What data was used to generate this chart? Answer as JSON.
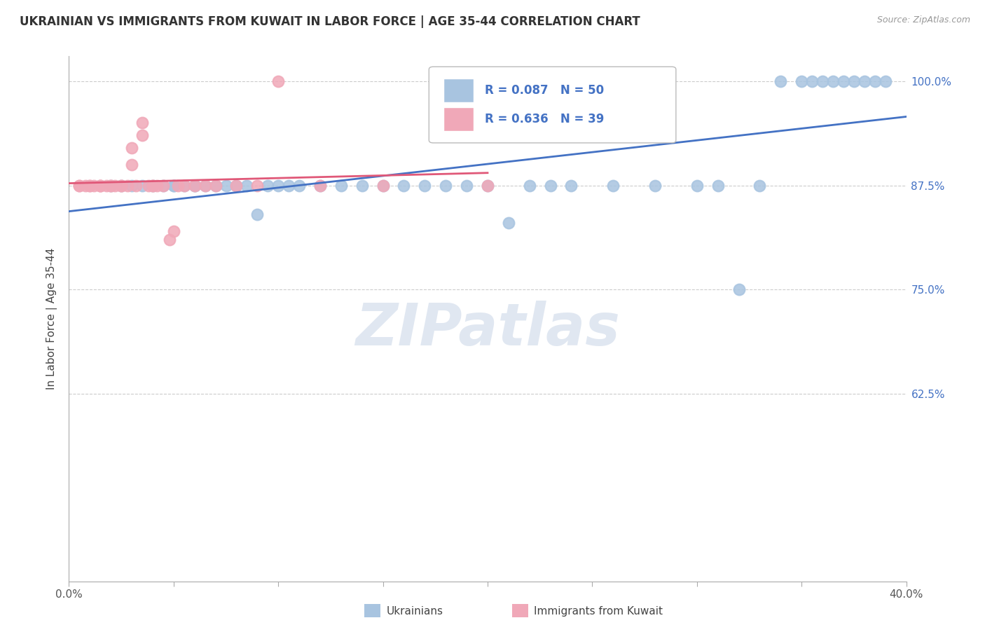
{
  "title": "UKRAINIAN VS IMMIGRANTS FROM KUWAIT IN LABOR FORCE | AGE 35-44 CORRELATION CHART",
  "source": "Source: ZipAtlas.com",
  "ylabel": "In Labor Force | Age 35-44",
  "xmin": 0.0,
  "xmax": 0.4,
  "ymin": 0.4,
  "ymax": 1.03,
  "ytick_vals": [
    0.625,
    0.75,
    0.875,
    1.0
  ],
  "ytick_labels": [
    "62.5%",
    "75.0%",
    "87.5%",
    "100.0%"
  ],
  "xtick_vals": [
    0.0,
    0.05,
    0.1,
    0.15,
    0.2,
    0.25,
    0.3,
    0.35,
    0.4
  ],
  "xtick_labels": [
    "0.0%",
    "",
    "",
    "",
    "",
    "",
    "",
    "",
    "40.0%"
  ],
  "blue_color": "#a8c4e0",
  "pink_color": "#f0a8b8",
  "blue_line_color": "#4472c4",
  "pink_line_color": "#e05878",
  "legend_R_blue": "R = 0.087",
  "legend_N_blue": "N = 50",
  "legend_R_pink": "R = 0.636",
  "legend_N_pink": "N = 39",
  "legend_label_blue": "Ukrainians",
  "legend_label_pink": "Immigrants from Kuwait",
  "watermark": "ZIPatlas",
  "blue_x": [
    0.02,
    0.025,
    0.03,
    0.035,
    0.04,
    0.045,
    0.05,
    0.05,
    0.055,
    0.06,
    0.06,
    0.065,
    0.07,
    0.075,
    0.08,
    0.085,
    0.09,
    0.095,
    0.1,
    0.105,
    0.11,
    0.12,
    0.13,
    0.14,
    0.15,
    0.16,
    0.17,
    0.18,
    0.19,
    0.2,
    0.21,
    0.22,
    0.23,
    0.24,
    0.26,
    0.28,
    0.3,
    0.31,
    0.32,
    0.33,
    0.34,
    0.35,
    0.355,
    0.36,
    0.365,
    0.37,
    0.375,
    0.38,
    0.385,
    0.39
  ],
  "blue_y": [
    0.875,
    0.875,
    0.875,
    0.875,
    0.875,
    0.875,
    0.875,
    0.875,
    0.875,
    0.875,
    0.875,
    0.875,
    0.875,
    0.875,
    0.875,
    0.875,
    0.84,
    0.875,
    0.875,
    0.875,
    0.875,
    0.875,
    0.875,
    0.875,
    0.875,
    0.875,
    0.875,
    0.875,
    0.875,
    0.875,
    0.83,
    0.875,
    0.875,
    0.875,
    0.875,
    0.875,
    0.875,
    0.875,
    0.75,
    0.875,
    1.0,
    1.0,
    1.0,
    1.0,
    1.0,
    1.0,
    1.0,
    1.0,
    1.0,
    1.0
  ],
  "pink_x": [
    0.005,
    0.005,
    0.008,
    0.01,
    0.01,
    0.012,
    0.015,
    0.015,
    0.015,
    0.018,
    0.02,
    0.02,
    0.022,
    0.025,
    0.025,
    0.028,
    0.03,
    0.03,
    0.032,
    0.035,
    0.035,
    0.038,
    0.04,
    0.04,
    0.042,
    0.045,
    0.048,
    0.05,
    0.052,
    0.055,
    0.06,
    0.065,
    0.07,
    0.08,
    0.09,
    0.1,
    0.12,
    0.15,
    0.2
  ],
  "pink_y": [
    0.875,
    0.875,
    0.875,
    0.875,
    0.875,
    0.875,
    0.875,
    0.875,
    0.875,
    0.875,
    0.875,
    0.875,
    0.875,
    0.875,
    0.875,
    0.875,
    0.9,
    0.92,
    0.875,
    0.935,
    0.95,
    0.875,
    0.875,
    0.875,
    0.875,
    0.875,
    0.81,
    0.82,
    0.875,
    0.875,
    0.875,
    0.875,
    0.875,
    0.875,
    0.875,
    1.0,
    0.875,
    0.875,
    0.875
  ]
}
